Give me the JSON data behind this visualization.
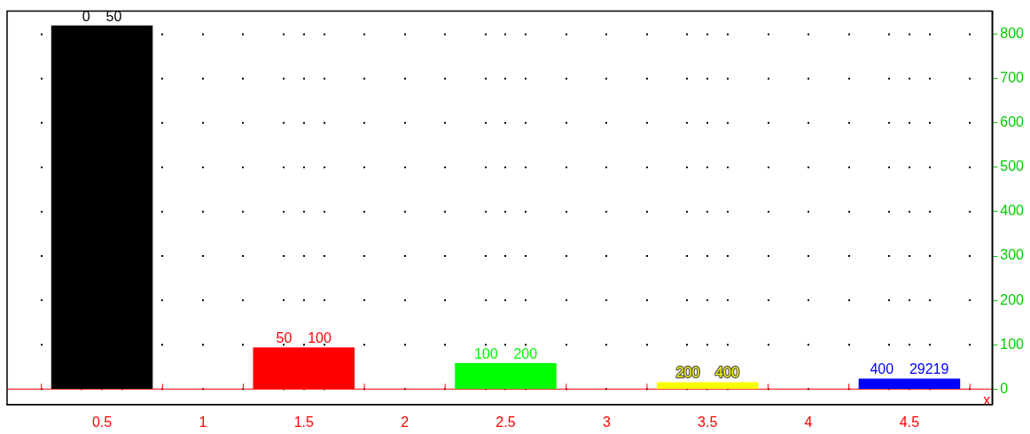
{
  "chart_data": {
    "type": "bar",
    "xlabel": "x",
    "x": [
      0.5,
      1.5,
      2.5,
      3.5,
      4.5
    ],
    "values": [
      819,
      93,
      58,
      15,
      23
    ],
    "colors": [
      "#000000",
      "#ff0000",
      "#00ff00",
      "#ffff00",
      "#0000ff"
    ],
    "xlim": [
      0.03,
      4.91
    ],
    "xticks": [
      {
        "value": 0.2,
        "label": null
      },
      {
        "value": 0.4,
        "label": null
      },
      0.5,
      {
        "value": 0.6,
        "label": null
      },
      {
        "value": 0.8,
        "label": null
      },
      1,
      {
        "value": 1.2,
        "label": null
      },
      {
        "value": 1.4,
        "label": null
      },
      1.5,
      {
        "value": 1.6,
        "label": null
      },
      {
        "value": 1.8,
        "label": null
      },
      2,
      {
        "value": 2.2,
        "label": null
      },
      {
        "value": 2.4,
        "label": null
      },
      2.5,
      {
        "value": 2.6,
        "label": null
      },
      {
        "value": 2.8,
        "label": null
      },
      3,
      {
        "value": 3.2,
        "label": null
      },
      {
        "value": 3.4,
        "label": null
      },
      3.5,
      {
        "value": 3.6,
        "label": null
      },
      {
        "value": 3.8,
        "label": null
      },
      4,
      {
        "value": 4.2,
        "label": null
      },
      {
        "value": 4.4,
        "label": null
      },
      4.5,
      {
        "value": 4.6,
        "label": null
      },
      {
        "value": 4.8,
        "label": null
      }
    ],
    "ylim": [
      -35,
      852
    ],
    "yticks": [
      0,
      100,
      200,
      300,
      400,
      500,
      600,
      700,
      800
    ],
    "grid": true,
    "ref_lines": [
      {
        "axis": "y",
        "value": 0,
        "color": "#ff0000"
      }
    ],
    "annotations": [
      {
        "text": "0    50",
        "x": 0.5,
        "y": 819
      },
      {
        "text": "50    100",
        "x": 1.5,
        "y": 93
      },
      {
        "text": "100    200",
        "x": 2.5,
        "y": 58
      },
      {
        "text": "200    400",
        "x": 3.5,
        "y": 15
      },
      {
        "text": "400    29219",
        "x": 4.5,
        "y": 23
      }
    ]
  }
}
